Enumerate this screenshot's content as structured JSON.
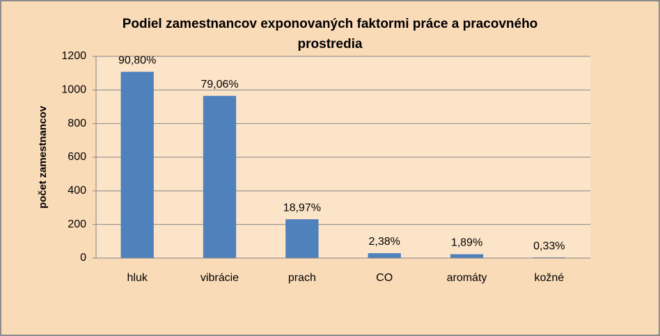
{
  "chart_data": {
    "type": "bar",
    "title": "Podiel zamestnancov exponovaných faktormi práce a pracovného prostredia",
    "y_label": "počet zamestnancov",
    "categories": [
      "hluk",
      "vibrácie",
      "prach",
      "CO",
      "aromáty",
      "kožné"
    ],
    "values": [
      1108,
      965,
      231,
      29,
      23,
      4
    ],
    "percent_values": [
      90.8,
      79.06,
      18.97,
      2.38,
      1.89,
      0.33
    ],
    "percent_labels": [
      "90,80%",
      "79,06%",
      "18,97%",
      "2,38%",
      "1,89%",
      "0,33%"
    ],
    "color": "#4f81bd",
    "ylim": [
      0,
      1200
    ],
    "yticks": [
      0,
      200,
      400,
      600,
      800,
      1000,
      1200
    ],
    "grid": true
  }
}
